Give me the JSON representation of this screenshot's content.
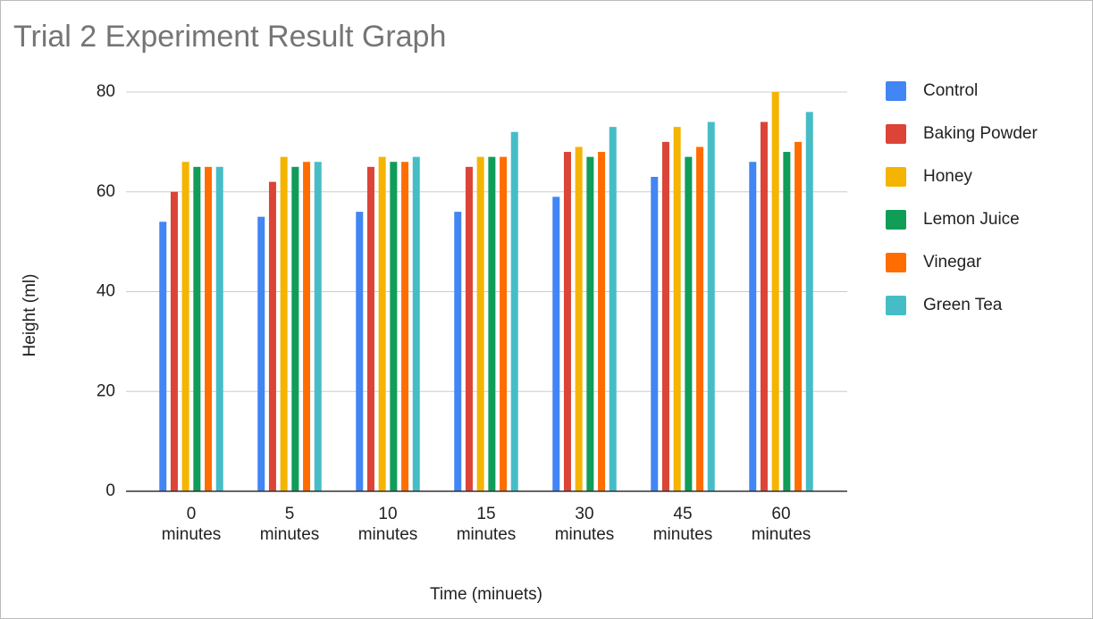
{
  "chart_data": {
    "type": "bar",
    "title": "Trial 2 Experiment Result Graph",
    "x_label": "Time (minuets)",
    "y_label": "Height (ml)",
    "categories": [
      "0 minutes",
      "5 minutes",
      "10 minutes",
      "15 minutes",
      "30 minutes",
      "45 minutes",
      "60 minutes"
    ],
    "series": [
      {
        "name": "Control",
        "color": "#4285f4",
        "values": [
          54,
          55,
          56,
          56,
          59,
          63,
          66
        ]
      },
      {
        "name": "Baking Powder",
        "color": "#db4437",
        "values": [
          60,
          62,
          65,
          65,
          68,
          70,
          74
        ]
      },
      {
        "name": "Honey",
        "color": "#f4b400",
        "values": [
          66,
          67,
          67,
          67,
          69,
          73,
          80
        ]
      },
      {
        "name": "Lemon Juice",
        "color": "#0f9d58",
        "values": [
          65,
          65,
          66,
          67,
          67,
          67,
          68
        ]
      },
      {
        "name": "Vinegar",
        "color": "#ff6d01",
        "values": [
          65,
          66,
          66,
          67,
          68,
          69,
          70
        ]
      },
      {
        "name": "Green Tea",
        "color": "#46bdc6",
        "values": [
          65,
          66,
          67,
          72,
          73,
          74,
          76
        ]
      }
    ],
    "ylim": [
      0,
      80
    ],
    "yticks": [
      0,
      20,
      40,
      60,
      80
    ],
    "grid": true,
    "legend": "right"
  }
}
